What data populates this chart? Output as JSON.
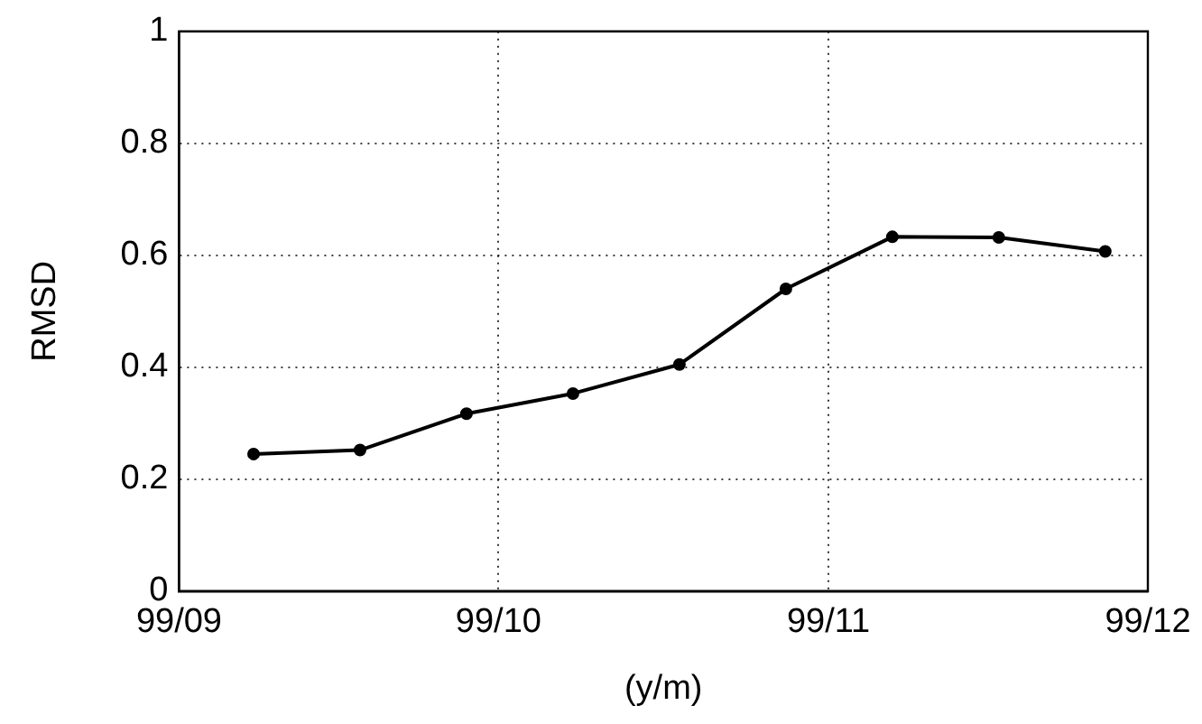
{
  "chart_data": {
    "type": "line",
    "xlabel": "(y/m)",
    "ylabel": "RMSD",
    "x": [
      "--09-08",
      "--09-18",
      "--09-28",
      "--10-08",
      "--10-18",
      "--10-28",
      "--11-07",
      "--11-17",
      "--11-27"
    ],
    "series": [
      {
        "color": "#000000",
        "values": [
          0.245,
          0.252,
          0.317,
          0.353,
          0.405,
          0.54,
          0.633,
          0.632,
          0.607
        ]
      }
    ],
    "xlim": [
      "--09-01",
      "--12-01"
    ],
    "xticks": [
      {
        "value": "--09-01",
        "label": "99/09"
      },
      {
        "value": "--10-01",
        "label": "99/10"
      },
      {
        "value": "--11-01",
        "label": "99/11"
      },
      {
        "value": "--12-01",
        "label": "99/12"
      }
    ],
    "ylim": [
      0,
      1
    ],
    "yticks": [
      0,
      0.2,
      0.4,
      0.6,
      0.8,
      1
    ],
    "grid": true,
    "legend": false,
    "marker": "circle",
    "line_style": "solid"
  }
}
